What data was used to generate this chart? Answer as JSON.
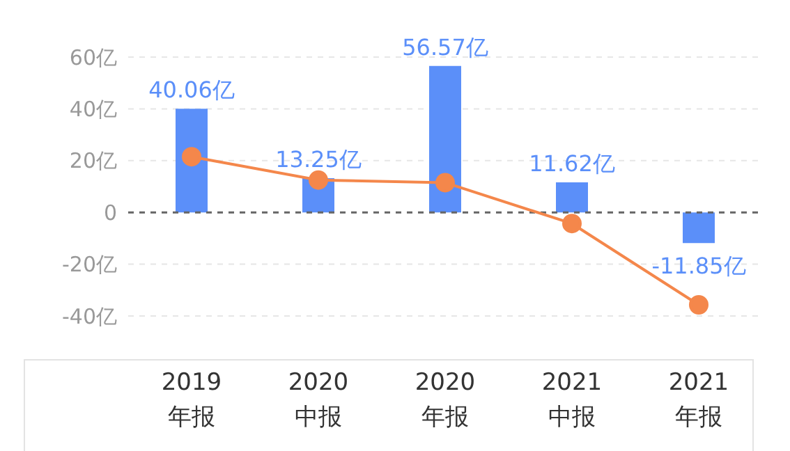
{
  "chart_data": {
    "type": "bar",
    "categories": [
      "2019\n年报",
      "2020\n中报",
      "2020\n年报",
      "2021\n中报",
      "2021\n年报"
    ],
    "series": [
      {
        "color": "#5b8ff9",
        "values": [
          40.06,
          13.25,
          56.57,
          11.62,
          -11.85
        ],
        "value_labels": [
          "40.06亿",
          "13.25亿",
          "56.57亿",
          "11.62亿",
          "-11.85亿"
        ]
      },
      {
        "type": "line",
        "color": "#f4874b",
        "values": [
          21.5,
          12.5,
          11.5,
          -4.3,
          -35.7
        ]
      }
    ],
    "ylim": [
      -40,
      60
    ],
    "yticks": [
      {
        "value": -40,
        "label": "-40亿"
      },
      {
        "value": -20,
        "label": "-20亿"
      },
      0,
      {
        "value": 20,
        "label": "20亿"
      },
      {
        "value": 40,
        "label": "40亿"
      },
      {
        "value": 60,
        "label": "60亿"
      }
    ],
    "grid": "y",
    "marker": "circle",
    "line_style": "solid",
    "ref_lines": [
      {
        "axis": "y",
        "value": 0,
        "color": "#666666",
        "line_style": "dashed"
      }
    ]
  }
}
